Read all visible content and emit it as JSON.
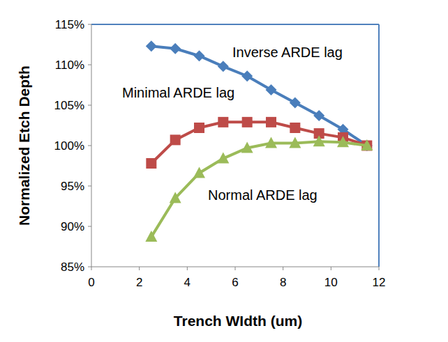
{
  "chart_data": {
    "type": "line",
    "x_label": "Trench WIdth (um)",
    "y_label": "Normalized Etch Depth",
    "x": [
      2.5,
      3.5,
      4.5,
      5.5,
      6.5,
      7.5,
      8.5,
      9.5,
      10.5,
      11.5
    ],
    "series": [
      {
        "name": "Inverse ARDE lag",
        "color": "#4a7ebb",
        "marker": "diamond",
        "line_style": "solid",
        "values": [
          112.3,
          112.0,
          111.1,
          109.8,
          108.6,
          106.9,
          105.3,
          103.7,
          102.0,
          100.0
        ]
      },
      {
        "name": "Minimal ARDE lag",
        "color": "#be4b48",
        "marker": "square",
        "line_style": "solid",
        "values": [
          97.8,
          100.7,
          102.2,
          102.9,
          102.9,
          102.9,
          102.2,
          101.5,
          101.0,
          100.0
        ]
      },
      {
        "name": "Normal ARDE lag",
        "color": "#9bbb59",
        "marker": "triangle",
        "line_style": "solid",
        "values": [
          88.7,
          93.5,
          96.6,
          98.4,
          99.7,
          100.3,
          100.3,
          100.5,
          100.4,
          100.0
        ]
      }
    ],
    "xlim": [
      0,
      12
    ],
    "xticks": [
      0,
      2,
      4,
      6,
      8,
      10,
      12
    ],
    "ylim": [
      85,
      115
    ],
    "yticks": [
      {
        "value": 85,
        "label": "85%"
      },
      {
        "value": 90,
        "label": "90%"
      },
      {
        "value": 95,
        "label": "95%"
      },
      {
        "value": 100,
        "label": "100%"
      },
      {
        "value": 105,
        "label": "105%"
      },
      {
        "value": 110,
        "label": "110%"
      },
      {
        "value": 115,
        "label": "115%"
      }
    ],
    "grid": false
  }
}
